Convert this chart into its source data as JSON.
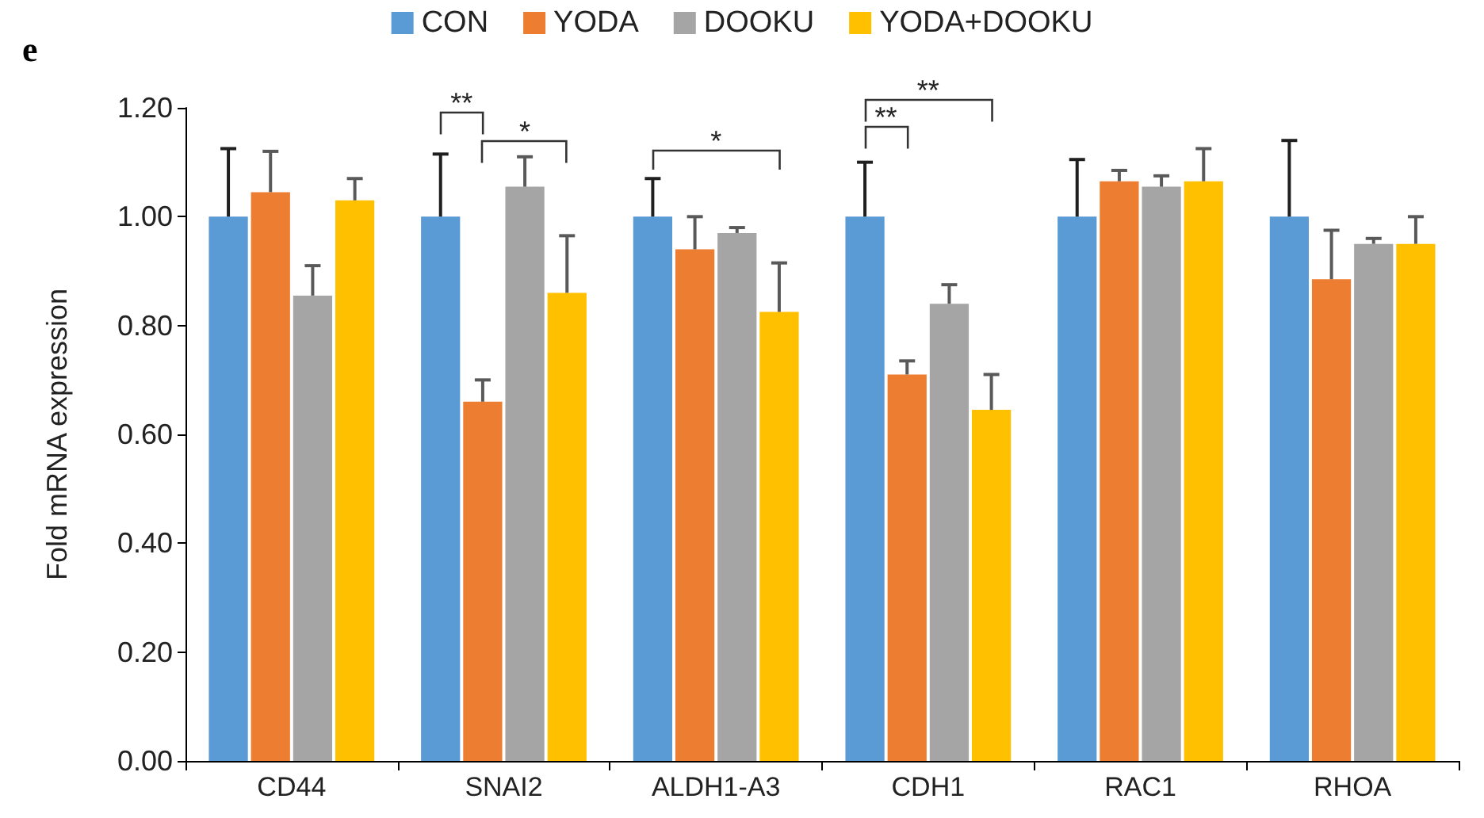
{
  "chart_data": {
    "type": "bar",
    "ylabel": "Fold mRNA expression",
    "categories": [
      "CD44",
      "SNAI2",
      "ALDH1-A3",
      "CDH1",
      "RAC1",
      "RHOA"
    ],
    "series": [
      {
        "name": "CON",
        "color": "#5b9bd5",
        "values": [
          1.0,
          1.0,
          1.0,
          1.0,
          1.0,
          1.0
        ],
        "errors": [
          [
            1.0,
            1.125
          ],
          [
            1.0,
            1.115
          ],
          [
            1.0,
            1.07
          ],
          [
            1.0,
            1.1
          ],
          [
            1.0,
            1.105
          ],
          [
            1.0,
            1.14
          ]
        ]
      },
      {
        "name": "YODA",
        "color": "#ed7d31",
        "values": [
          1.045,
          0.66,
          0.94,
          0.71,
          1.065,
          0.885
        ],
        "errors": [
          [
            1.045,
            1.12
          ],
          [
            0.66,
            0.7
          ],
          [
            0.94,
            1.0
          ],
          [
            0.71,
            0.735
          ],
          [
            1.065,
            1.085
          ],
          [
            0.885,
            0.975
          ]
        ]
      },
      {
        "name": "DOOKU",
        "color": "#a5a5a5",
        "values": [
          0.855,
          1.055,
          0.97,
          0.84,
          1.055,
          0.95
        ],
        "errors": [
          [
            0.855,
            0.91
          ],
          [
            1.055,
            1.11
          ],
          [
            0.97,
            0.98
          ],
          [
            0.84,
            0.875
          ],
          [
            1.055,
            1.075
          ],
          [
            0.95,
            0.96
          ]
        ]
      },
      {
        "name": "YODA+DOOKU",
        "color": "#ffc000",
        "values": [
          1.03,
          0.86,
          0.825,
          0.645,
          1.065,
          0.95
        ],
        "errors": [
          [
            1.03,
            1.07
          ],
          [
            0.86,
            0.965
          ],
          [
            0.825,
            0.915
          ],
          [
            0.645,
            0.71
          ],
          [
            1.065,
            1.125
          ],
          [
            0.95,
            1.0
          ]
        ]
      }
    ],
    "ylim": [
      0,
      1.2
    ],
    "yticks": [
      {
        "value": 0,
        "label": "0.00"
      },
      {
        "value": 0.2,
        "label": "0.20"
      },
      {
        "value": 0.4,
        "label": "0.40"
      },
      {
        "value": 0.6,
        "label": "0.60"
      },
      {
        "value": 0.8,
        "label": "0.80"
      },
      {
        "value": 1.0,
        "label": "1.00"
      },
      {
        "value": 1.2,
        "label": "1.20"
      }
    ],
    "grid": false,
    "legend": "top",
    "annotations": [
      "e",
      "**",
      "*",
      "*",
      "**",
      "**"
    ]
  }
}
